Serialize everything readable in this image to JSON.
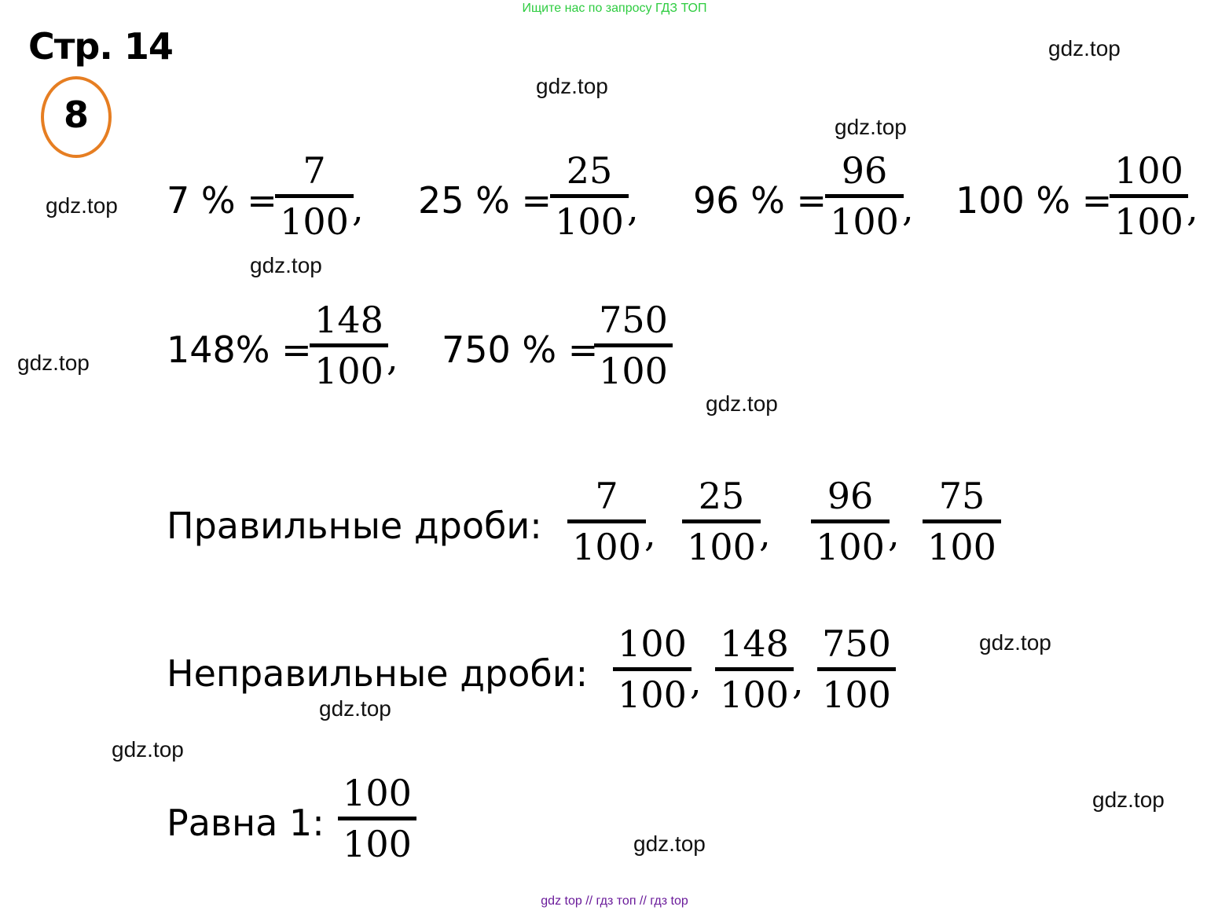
{
  "banner": "Ищите нас по запросу ГДЗ ТОП",
  "page_title": "Стр. 14",
  "task_number": "8",
  "watermark": "gdz.top",
  "row1": [
    {
      "lhs": "7 % =",
      "num": "7",
      "den": "100",
      "sep": ","
    },
    {
      "lhs": "25 % =",
      "num": "25",
      "den": "100",
      "sep": ","
    },
    {
      "lhs": "96 % =",
      "num": "96",
      "den": "100",
      "sep": ","
    },
    {
      "lhs": "100 % =",
      "num": "100",
      "den": "100",
      "sep": ","
    }
  ],
  "row2": [
    {
      "lhs": "148% =",
      "num": "148",
      "den": "100",
      "sep": ","
    },
    {
      "lhs": "750 % =",
      "num": "750",
      "den": "100",
      "sep": ""
    }
  ],
  "proper": {
    "label": "Правильные дроби:",
    "fractions": [
      {
        "num": "7",
        "den": "100",
        "sep": ","
      },
      {
        "num": "25",
        "den": "100",
        "sep": ","
      },
      {
        "num": "96",
        "den": "100",
        "sep": ","
      },
      {
        "num": "75",
        "den": "100",
        "sep": ""
      }
    ]
  },
  "improper": {
    "label": "Неправильные дроби:",
    "fractions": [
      {
        "num": "100",
        "den": "100",
        "sep": ","
      },
      {
        "num": "148",
        "den": "100",
        "sep": ","
      },
      {
        "num": "750",
        "den": "100",
        "sep": ""
      }
    ]
  },
  "equal_one": {
    "label": "Равна 1:",
    "fractions": [
      {
        "num": "100",
        "den": "100",
        "sep": ""
      }
    ]
  },
  "footer": "gdz top  //  гдз топ  //  гдз top"
}
